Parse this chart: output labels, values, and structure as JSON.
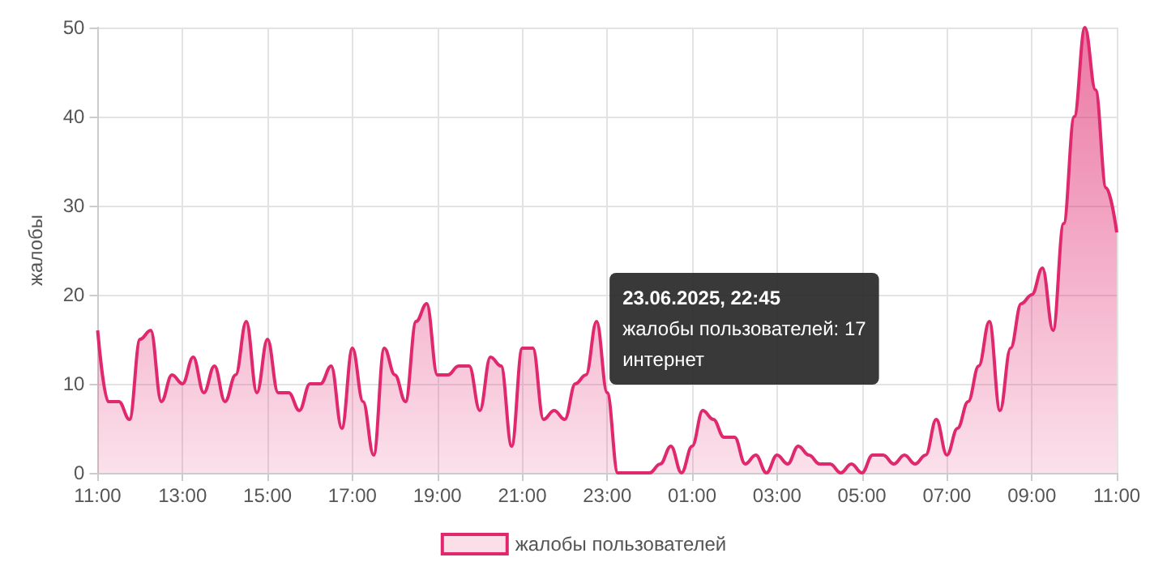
{
  "chart_data": {
    "type": "area",
    "ylabel": "жалобы",
    "xlim": [
      "2025-06-23T11:00",
      "2025-06-24T11:00"
    ],
    "ylim": [
      0,
      50
    ],
    "xticks": [
      {
        "value": "2025-06-23T11:00",
        "label": "11:00"
      },
      {
        "value": "2025-06-23T13:00",
        "label": "13:00"
      },
      {
        "value": "2025-06-23T15:00",
        "label": "15:00"
      },
      {
        "value": "2025-06-23T17:00",
        "label": "17:00"
      },
      {
        "value": "2025-06-23T19:00",
        "label": "19:00"
      },
      {
        "value": "2025-06-23T21:00",
        "label": "21:00"
      },
      {
        "value": "2025-06-23T23:00",
        "label": "23:00"
      },
      {
        "value": "2025-06-24T01:00",
        "label": "01:00"
      },
      {
        "value": "2025-06-24T03:00",
        "label": "03:00"
      },
      {
        "value": "2025-06-24T05:00",
        "label": "05:00"
      },
      {
        "value": "2025-06-24T07:00",
        "label": "07:00"
      },
      {
        "value": "2025-06-24T09:00",
        "label": "09:00"
      },
      {
        "value": "2025-06-24T11:00",
        "label": "11:00"
      }
    ],
    "yticks": [
      0,
      10,
      20,
      30,
      40,
      50
    ],
    "grid": true,
    "legend": "bottom",
    "marker": "none",
    "line_style": "solid",
    "x": [
      "2025-06-23T11:00",
      "2025-06-23T11:15",
      "2025-06-23T11:30",
      "2025-06-23T11:45",
      "2025-06-23T12:00",
      "2025-06-23T12:15",
      "2025-06-23T12:30",
      "2025-06-23T12:45",
      "2025-06-23T13:00",
      "2025-06-23T13:15",
      "2025-06-23T13:30",
      "2025-06-23T13:45",
      "2025-06-23T14:00",
      "2025-06-23T14:15",
      "2025-06-23T14:30",
      "2025-06-23T14:45",
      "2025-06-23T15:00",
      "2025-06-23T15:15",
      "2025-06-23T15:30",
      "2025-06-23T15:45",
      "2025-06-23T16:00",
      "2025-06-23T16:15",
      "2025-06-23T16:30",
      "2025-06-23T16:45",
      "2025-06-23T17:00",
      "2025-06-23T17:15",
      "2025-06-23T17:30",
      "2025-06-23T17:45",
      "2025-06-23T18:00",
      "2025-06-23T18:15",
      "2025-06-23T18:30",
      "2025-06-23T18:45",
      "2025-06-23T19:00",
      "2025-06-23T19:15",
      "2025-06-23T19:30",
      "2025-06-23T19:45",
      "2025-06-23T20:00",
      "2025-06-23T20:15",
      "2025-06-23T20:30",
      "2025-06-23T20:45",
      "2025-06-23T21:00",
      "2025-06-23T21:15",
      "2025-06-23T21:30",
      "2025-06-23T21:45",
      "2025-06-23T22:00",
      "2025-06-23T22:15",
      "2025-06-23T22:30",
      "2025-06-23T22:45",
      "2025-06-23T23:00",
      "2025-06-23T23:15",
      "2025-06-23T23:30",
      "2025-06-23T23:45",
      "2025-06-24T00:00",
      "2025-06-24T00:15",
      "2025-06-24T00:30",
      "2025-06-24T00:45",
      "2025-06-24T01:00",
      "2025-06-24T01:15",
      "2025-06-24T01:30",
      "2025-06-24T01:45",
      "2025-06-24T02:00",
      "2025-06-24T02:15",
      "2025-06-24T02:30",
      "2025-06-24T02:45",
      "2025-06-24T03:00",
      "2025-06-24T03:15",
      "2025-06-24T03:30",
      "2025-06-24T03:45",
      "2025-06-24T04:00",
      "2025-06-24T04:15",
      "2025-06-24T04:30",
      "2025-06-24T04:45",
      "2025-06-24T05:00",
      "2025-06-24T05:15",
      "2025-06-24T05:30",
      "2025-06-24T05:45",
      "2025-06-24T06:00",
      "2025-06-24T06:15",
      "2025-06-24T06:30",
      "2025-06-24T06:45",
      "2025-06-24T07:00",
      "2025-06-24T07:15",
      "2025-06-24T07:30",
      "2025-06-24T07:45",
      "2025-06-24T08:00",
      "2025-06-24T08:15",
      "2025-06-24T08:30",
      "2025-06-24T08:45",
      "2025-06-24T09:00",
      "2025-06-24T09:15",
      "2025-06-24T09:30",
      "2025-06-24T09:45",
      "2025-06-24T10:00",
      "2025-06-24T10:15",
      "2025-06-24T10:30",
      "2025-06-24T10:45",
      "2025-06-24T11:00"
    ],
    "series": [
      {
        "name": "жалобы пользователей",
        "color": "#e0286e",
        "values": [
          16,
          8,
          8,
          6,
          15,
          16,
          8,
          11,
          10,
          13,
          9,
          12,
          8,
          11,
          17,
          9,
          15,
          9,
          9,
          7,
          10,
          10,
          12,
          5,
          14,
          8,
          2,
          14,
          11,
          8,
          17,
          19,
          11,
          11,
          12,
          12,
          7,
          13,
          12,
          3,
          14,
          14,
          6,
          7,
          6,
          10,
          11,
          17,
          9,
          0,
          0,
          0,
          0,
          1,
          3,
          0,
          3,
          7,
          6,
          4,
          4,
          1,
          2,
          0,
          2,
          1,
          3,
          2,
          1,
          1,
          0,
          1,
          0,
          2,
          2,
          1,
          2,
          1,
          2,
          6,
          2,
          5,
          8,
          12,
          17,
          7,
          14,
          19,
          20,
          23,
          16,
          28,
          40,
          50,
          43,
          32,
          27
        ]
      }
    ],
    "annotations": [
      {
        "text": "23.06.2025, 22:45\nжалобы пользователей: 17\nинтернет",
        "x": "2025-06-23T22:45",
        "y": 17
      }
    ]
  }
}
